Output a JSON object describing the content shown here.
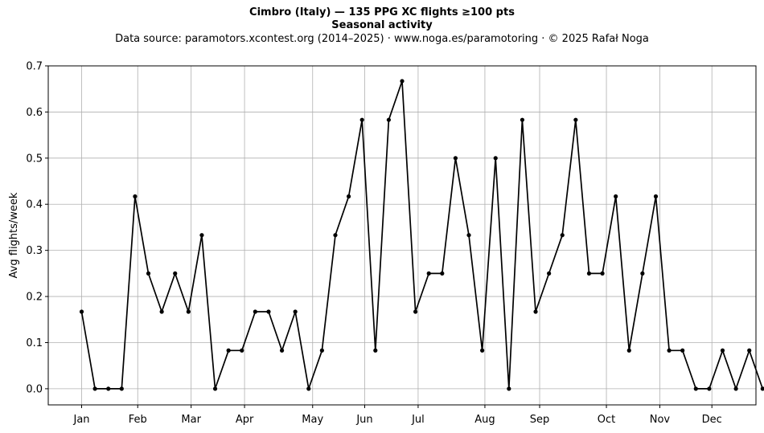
{
  "chart_data": {
    "type": "line",
    "title": "Cimbro (Italy)  —  135 PPG XC flights ≥100 pts",
    "subtitle": "Seasonal activity",
    "source": "Data source: paramotors.xcontest.org (2014–2025)  ·  www.noga.es/paramotoring  ·  © 2025 Rafał Noga",
    "xlabel": "",
    "ylabel": "Avg flights/week",
    "xlim": [
      0,
      53
    ],
    "ylim": [
      -0.035,
      0.7
    ],
    "yticks": [
      0.0,
      0.1,
      0.2,
      0.3,
      0.4,
      0.5,
      0.6,
      0.7
    ],
    "ytick_labels": [
      "0.0",
      "0.1",
      "0.2",
      "0.3",
      "0.4",
      "0.5",
      "0.6",
      "0.7"
    ],
    "xticks": [
      {
        "label": "Jan",
        "week": 2.5
      },
      {
        "label": "Feb",
        "week": 6.7
      },
      {
        "label": "Mar",
        "week": 10.7
      },
      {
        "label": "Apr",
        "week": 14.7
      },
      {
        "label": "May",
        "week": 19.8
      },
      {
        "label": "Jun",
        "week": 23.7
      },
      {
        "label": "Jul",
        "week": 27.7
      },
      {
        "label": "Aug",
        "week": 32.7
      },
      {
        "label": "Sep",
        "week": 36.8
      },
      {
        "label": "Oct",
        "week": 41.8
      },
      {
        "label": "Nov",
        "week": 45.8
      },
      {
        "label": "Dec",
        "week": 49.7
      }
    ],
    "grid": true,
    "series": [
      {
        "color": "#000000",
        "x": [
          2.5,
          3.5,
          4.5,
          5.5,
          6.5,
          7.5,
          8.5,
          9.5,
          10.5,
          11.5,
          12.5,
          13.5,
          14.5,
          15.5,
          16.5,
          17.5,
          18.5,
          19.5,
          20.5,
          21.5,
          22.5,
          23.5,
          24.5,
          25.5,
          26.5,
          27.5,
          28.5,
          29.5,
          30.5,
          31.5,
          32.5,
          33.5,
          34.5,
          35.5,
          36.5,
          37.5,
          38.5,
          39.5,
          40.5,
          41.5,
          42.5,
          43.5,
          44.5,
          45.5,
          46.5,
          47.5,
          48.5,
          49.5,
          50.5,
          51.5,
          52.5,
          53.5
        ],
        "y": [
          0.167,
          0.0,
          0.0,
          0.0,
          0.417,
          0.25,
          0.167,
          0.25,
          0.167,
          0.333,
          0.0,
          0.083,
          0.083,
          0.167,
          0.167,
          0.083,
          0.167,
          0.0,
          0.083,
          0.333,
          0.417,
          0.583,
          0.083,
          0.583,
          0.667,
          0.167,
          0.25,
          0.25,
          0.5,
          0.333,
          0.083,
          0.5,
          0.0,
          0.583,
          0.167,
          0.25,
          0.333,
          0.583,
          0.25,
          0.25,
          0.417,
          0.083,
          0.25,
          0.417,
          0.083,
          0.083,
          0.0,
          0.0,
          0.083,
          0.0,
          0.083,
          0.0
        ]
      }
    ]
  }
}
